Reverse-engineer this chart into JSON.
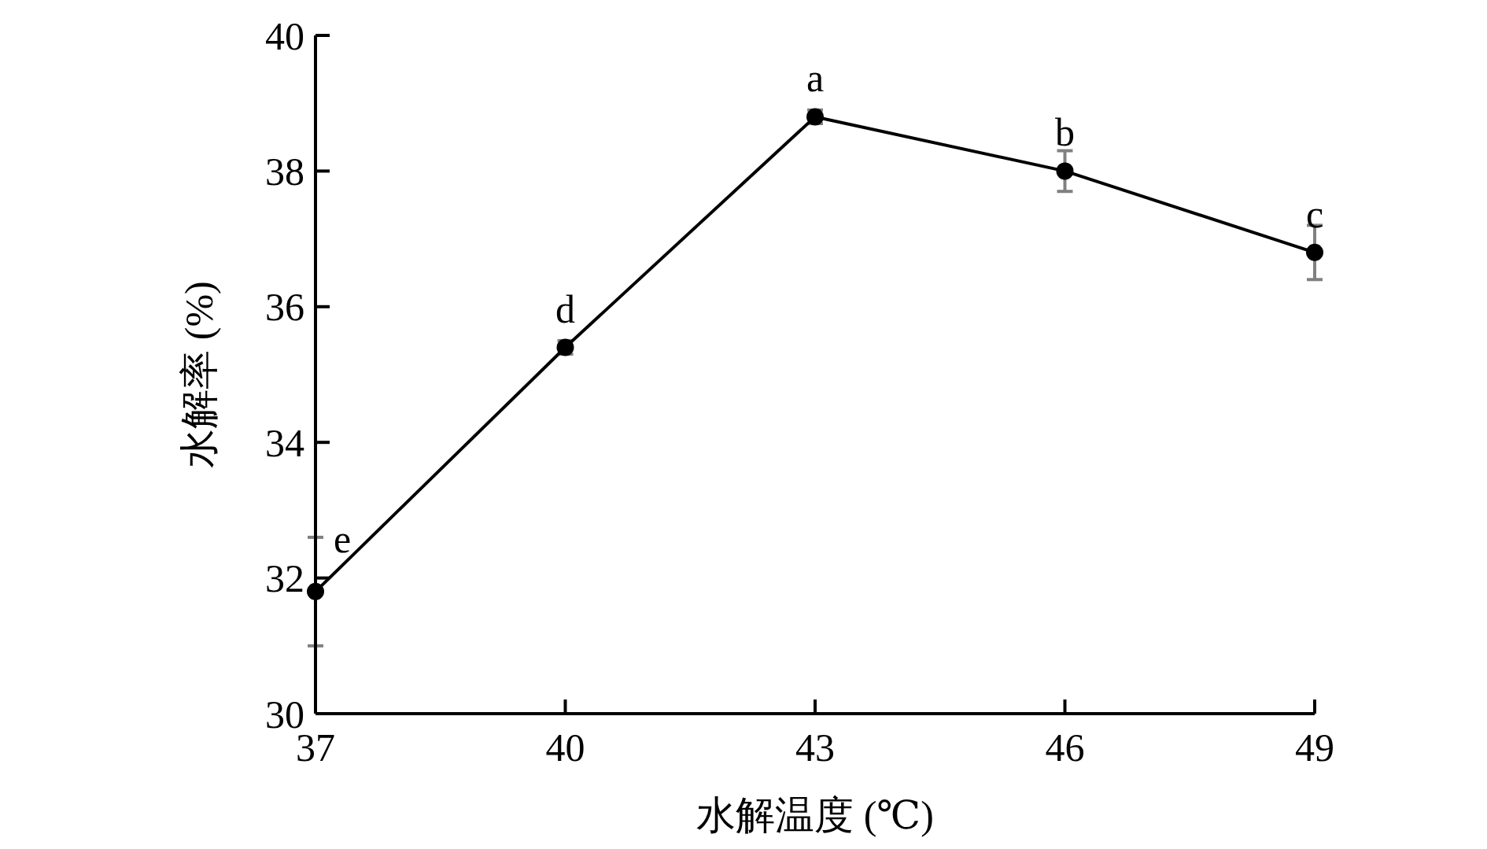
{
  "chart_data": {
    "type": "line",
    "xlabel": "水解温度 (℃)",
    "ylabel": "水解率 (%)",
    "x": [
      37,
      40,
      43,
      46,
      49
    ],
    "series": [
      {
        "color": "#000000",
        "values": [
          31.8,
          35.4,
          38.8,
          38.0,
          36.8
        ],
        "errors": [
          0.8,
          0.1,
          0.1,
          0.3,
          0.4
        ]
      }
    ],
    "xlim": [
      37,
      49
    ],
    "xticks": [
      37,
      40,
      43,
      46,
      49
    ],
    "ylim": [
      30,
      40
    ],
    "yticks": [
      30,
      32,
      34,
      36,
      38,
      40
    ],
    "marker": "circle",
    "line_style": "solid",
    "annotations": [
      {
        "text": "e",
        "x": 37,
        "y": 31.8
      },
      {
        "text": "d",
        "x": 40,
        "y": 35.4
      },
      {
        "text": "a",
        "x": 43,
        "y": 38.8
      },
      {
        "text": "b",
        "x": 46,
        "y": 38.0
      },
      {
        "text": "c",
        "x": 49,
        "y": 36.8
      }
    ]
  }
}
